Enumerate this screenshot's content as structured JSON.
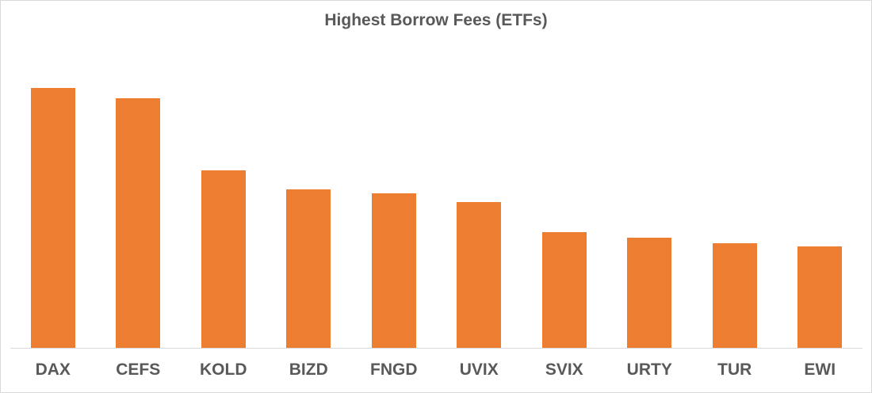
{
  "chart_data": {
    "type": "bar",
    "title": "Highest Borrow Fees (ETFs)",
    "xlabel": "",
    "ylabel": "",
    "categories": [
      "DAX",
      "CEFS",
      "KOLD",
      "BIZD",
      "FNGD",
      "UVIX",
      "SVIX",
      "URTY",
      "TUR",
      "EWI"
    ],
    "values": [
      328,
      315,
      224,
      200,
      195,
      184,
      146,
      139,
      132,
      128
    ],
    "value_units": "relative bar height (no y-axis shown)",
    "ylim": [
      0,
      379
    ],
    "grid": false,
    "legend": null,
    "bar_color": "#ED7D31"
  },
  "colors": {
    "bar": "#ED7D31",
    "text": "#595959",
    "axis": "#D9D9D9",
    "border": "#D9D9D9"
  }
}
